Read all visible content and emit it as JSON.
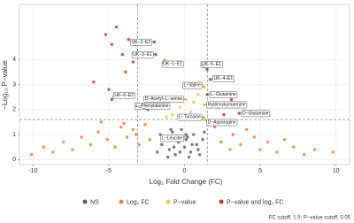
{
  "chart_data": {
    "type": "scatter",
    "x_label": "Log₂ Fold Change (FC)",
    "y_label": "−Log₁₀ P−value",
    "caption": "FC cutoff, 1.5; P−value cutoff, 0.05",
    "xlim": [
      -10.9,
      10.9
    ],
    "ylim": [
      -0.2,
      6.2
    ],
    "xticks": [
      -10,
      -5,
      0,
      5,
      10
    ],
    "yticks": [
      0,
      1,
      2,
      3,
      4
    ],
    "grid": true,
    "legend": "bottom",
    "vlines": [
      -3.1,
      1.5
    ],
    "hline": 1.6,
    "series": [
      {
        "name": "NS",
        "color": "#5f5f5f",
        "x": [
          -1.8,
          -1.5,
          -1.2,
          -1.0,
          -0.8,
          -0.6,
          -0.4,
          -0.2,
          0,
          0.2,
          0.4,
          0.6,
          0.8,
          1.0,
          1.2,
          -1.6,
          -1.1,
          -0.7,
          -0.3,
          0.1,
          0.5,
          0.9,
          1.3,
          -0.9,
          0.3,
          0.1
        ],
        "values": [
          0.3,
          0.6,
          0.9,
          0.4,
          1.1,
          0.2,
          0.7,
          1.2,
          0.5,
          0.9,
          0.3,
          1.0,
          0.6,
          0.2,
          0.8,
          1.0,
          0.1,
          0.5,
          0.3,
          0.8,
          0.6,
          0.4,
          1.1,
          1.2,
          0.1,
          1.0
        ],
        "labels": [
          null,
          null,
          null,
          null,
          null,
          null,
          null,
          null,
          null,
          null,
          null,
          null,
          null,
          null,
          null,
          null,
          null,
          null,
          null,
          null,
          null,
          null,
          null,
          null,
          null,
          "L−Leucine"
        ]
      },
      {
        "name": "Log₂ FC",
        "color": "#ee7d3a",
        "x": [
          -10.1,
          -9.3,
          -8.7,
          -8.0,
          -7.4,
          -6.8,
          -6.2,
          -5.7,
          -5.1,
          -4.6,
          -4.2,
          -3.8,
          -3.4,
          -3.0,
          -2.6,
          -2.3,
          2.0,
          2.4,
          2.8,
          3.2,
          3.7,
          4.1,
          4.6,
          5.0,
          5.5,
          6.1,
          6.6,
          7.2,
          7.9,
          8.6,
          9.8,
          -5.5,
          -4.0,
          -3.2,
          3.0
        ],
        "values": [
          0.2,
          0.5,
          0.3,
          0.7,
          0.4,
          0.9,
          0.6,
          1.1,
          0.8,
          0.5,
          1.3,
          0.9,
          1.2,
          0.6,
          1.4,
          0.8,
          1.3,
          0.7,
          1.5,
          1.0,
          0.6,
          1.2,
          0.9,
          0.4,
          0.7,
          0.3,
          0.8,
          0.5,
          0.2,
          0.4,
          0.3,
          1.5,
          1.45,
          1.0,
          0.4
        ]
      },
      {
        "name": "P−value",
        "color": "#f2c744",
        "x": [
          -0.8,
          -0.3,
          0.4,
          0.9,
          1.1,
          0.6,
          -1.2,
          0.1,
          1.3,
          1.3,
          1.3,
          1.3,
          -1.3
        ],
        "values": [
          1.8,
          2.1,
          1.9,
          2.6,
          3.0,
          2.3,
          1.7,
          2.4,
          2.9,
          2.2,
          1.7,
          1.6,
          4.0
        ],
        "labels": [
          null,
          null,
          null,
          null,
          null,
          null,
          null,
          "D−Acetyl−L−serine",
          "L−Valine",
          "Hydroxykynurenine",
          "L−Tyrosine",
          "D−Asparagine",
          "UK−1−E1"
        ]
      },
      {
        "name": "P−value and log₂ FC",
        "color": "#c0392b",
        "x": [
          -5.2,
          -4.8,
          -4.5,
          -4.1,
          -3.7,
          -3.4,
          -6.0,
          -3.9,
          -2.0,
          -1.9,
          -4.8,
          -2.4,
          1.5,
          1.7,
          1.5,
          3.6,
          2.2,
          2.6,
          3.1,
          4.4,
          -5.0
        ],
        "values": [
          5.0,
          4.6,
          5.3,
          4.2,
          4.8,
          3.9,
          3.1,
          3.5,
          4.7,
          4.2,
          2.4,
          2.0,
          3.6,
          3.2,
          2.6,
          1.85,
          2.1,
          1.8,
          2.4,
          1.9,
          2.8
        ],
        "labels": [
          null,
          null,
          null,
          null,
          null,
          null,
          null,
          null,
          "UK−2−E1",
          "UK−3−E1",
          "UK−6−E2",
          "L−Phenylalanine",
          "UK−5−E1",
          "UK−4−E1",
          "L−Glutamine",
          "D−Glutamine",
          null,
          null,
          null,
          null,
          null
        ]
      }
    ]
  }
}
